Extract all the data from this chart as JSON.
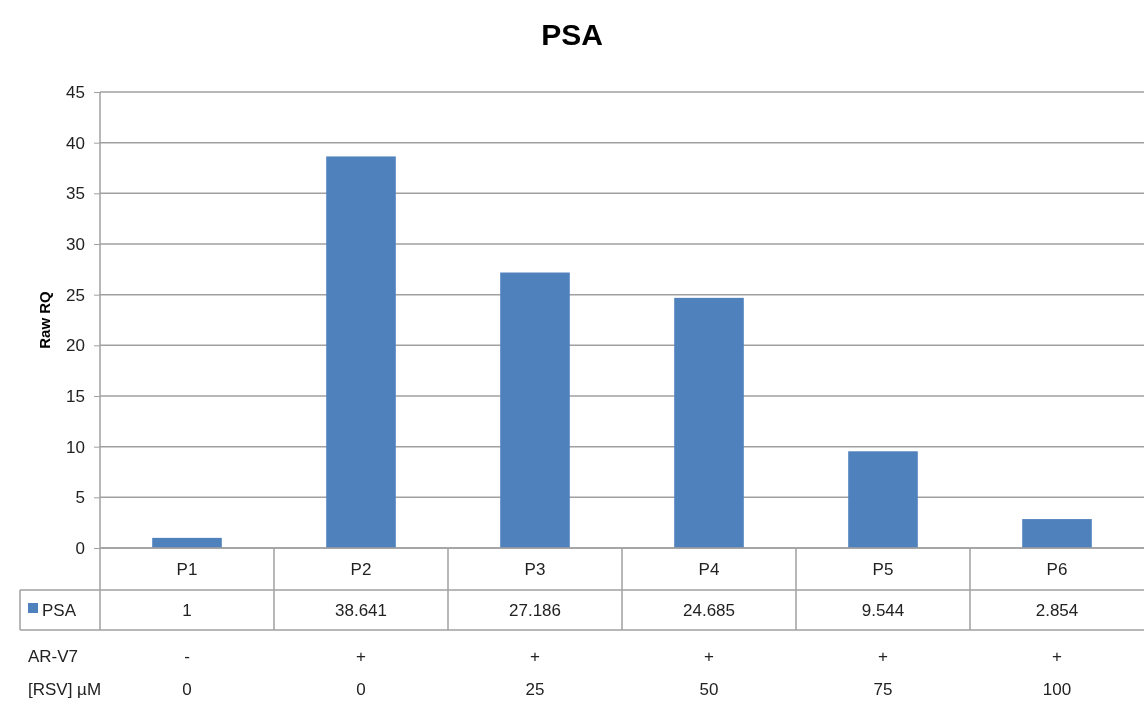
{
  "chart_data": {
    "type": "bar",
    "title": "PSA",
    "ylabel": "Raw RQ",
    "categories": [
      "P1",
      "P2",
      "P3",
      "P4",
      "P5",
      "P6"
    ],
    "series": [
      {
        "name": "PSA",
        "color": "#4f81bd",
        "values": [
          1,
          38.641,
          27.186,
          24.685,
          9.544,
          2.854
        ]
      }
    ],
    "ylim": [
      0,
      45
    ],
    "yticks": [
      0,
      5,
      10,
      15,
      20,
      25,
      30,
      35,
      40,
      45
    ],
    "grid": "y",
    "legend": "bottom",
    "data_labels": true,
    "annotations": [
      "AR-V7",
      "-",
      "+",
      "+",
      "+",
      "+",
      "+",
      "[RSV] µM",
      "0",
      "0",
      "25",
      "50",
      "75",
      "100"
    ]
  }
}
